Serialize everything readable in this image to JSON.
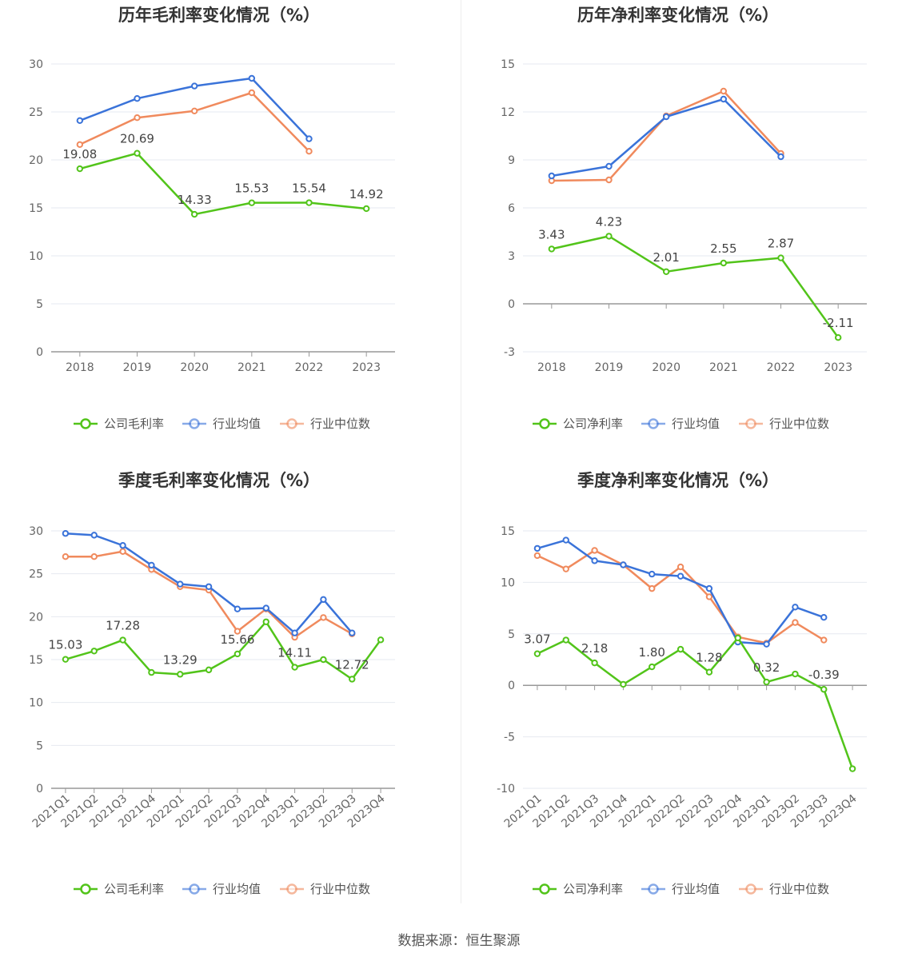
{
  "source_text": "数据来源：恒生聚源",
  "colors": {
    "company": "#52c41a",
    "avg": "#3a73d9",
    "median": "#f08a5d"
  },
  "chart_data": [
    {
      "type": "line",
      "title": "历年毛利率变化情况（%）",
      "categories": [
        "2018",
        "2019",
        "2020",
        "2021",
        "2022",
        "2023"
      ],
      "yticks": [
        0,
        5,
        10,
        15,
        20,
        25,
        30
      ],
      "ylim": [
        0,
        30
      ],
      "grid": true,
      "legend_position": "bottom",
      "series": [
        {
          "name": "公司毛利率",
          "values": [
            19.08,
            20.69,
            14.33,
            15.53,
            15.54,
            14.92
          ],
          "labels": [
            "19.08",
            "20.69",
            "14.33",
            "15.53",
            "15.54",
            "14.92"
          ]
        },
        {
          "name": "行业均值",
          "values": [
            24.1,
            26.4,
            27.7,
            28.5,
            22.2,
            null
          ]
        },
        {
          "name": "行业中位数",
          "values": [
            21.6,
            24.4,
            25.1,
            27.0,
            20.9,
            null
          ]
        }
      ]
    },
    {
      "type": "line",
      "title": "历年净利率变化情况（%）",
      "categories": [
        "2018",
        "2019",
        "2020",
        "2021",
        "2022",
        "2023"
      ],
      "yticks": [
        -3,
        0,
        3,
        6,
        9,
        12,
        15
      ],
      "ylim": [
        -3,
        15
      ],
      "grid": true,
      "legend_position": "bottom",
      "series": [
        {
          "name": "公司净利率",
          "values": [
            3.43,
            4.23,
            2.01,
            2.55,
            2.87,
            -2.11
          ],
          "labels": [
            "3.43",
            "4.23",
            "2.01",
            "2.55",
            "2.87",
            "-2.11"
          ]
        },
        {
          "name": "行业均值",
          "values": [
            8.0,
            8.6,
            11.7,
            12.8,
            9.2,
            null
          ]
        },
        {
          "name": "行业中位数",
          "values": [
            7.7,
            7.75,
            11.75,
            13.3,
            9.4,
            null
          ]
        }
      ]
    },
    {
      "type": "line",
      "title": "季度毛利率变化情况（%）",
      "categories": [
        "2021Q1",
        "2021Q2",
        "2021Q3",
        "2021Q4",
        "2022Q1",
        "2022Q2",
        "2022Q3",
        "2022Q4",
        "2023Q1",
        "2023Q2",
        "2023Q3",
        "2023Q4"
      ],
      "yticks": [
        0,
        5,
        10,
        15,
        20,
        25,
        30
      ],
      "ylim": [
        0,
        30
      ],
      "grid": true,
      "legend_position": "bottom",
      "series": [
        {
          "name": "公司毛利率",
          "values": [
            15.03,
            16.0,
            17.28,
            13.5,
            13.29,
            13.8,
            15.66,
            19.4,
            14.11,
            15.0,
            12.72,
            17.3
          ],
          "labels": [
            "15.03",
            "",
            "17.28",
            "",
            "13.29",
            "",
            "15.66",
            "",
            "14.11",
            "",
            "12.72",
            ""
          ]
        },
        {
          "name": "行业均值",
          "values": [
            29.7,
            29.5,
            28.3,
            26.0,
            23.8,
            23.5,
            20.9,
            21.0,
            18.1,
            22.0,
            18.1,
            null
          ]
        },
        {
          "name": "行业中位数",
          "values": [
            27.0,
            27.0,
            27.6,
            25.5,
            23.5,
            23.1,
            18.3,
            20.9,
            17.6,
            19.9,
            18.0,
            null
          ]
        }
      ]
    },
    {
      "type": "line",
      "title": "季度净利率变化情况（%）",
      "categories": [
        "2021Q1",
        "2021Q2",
        "2021Q3",
        "2021Q4",
        "2022Q1",
        "2022Q2",
        "2022Q3",
        "2022Q4",
        "2023Q1",
        "2023Q2",
        "2023Q3",
        "2023Q4"
      ],
      "yticks": [
        -10,
        -5,
        0,
        5,
        10,
        15
      ],
      "ylim": [
        -10,
        15
      ],
      "grid": true,
      "legend_position": "bottom",
      "series": [
        {
          "name": "公司净利率",
          "values": [
            3.07,
            4.4,
            2.18,
            0.1,
            1.8,
            3.5,
            1.28,
            4.6,
            0.32,
            1.1,
            -0.39,
            -8.1
          ],
          "labels": [
            "3.07",
            "",
            "2.18",
            "",
            "1.80",
            "",
            "1.28",
            "",
            "0.32",
            "",
            "-0.39",
            ""
          ]
        },
        {
          "name": "行业均值",
          "values": [
            13.3,
            14.1,
            12.1,
            11.7,
            10.8,
            10.6,
            9.4,
            4.2,
            4.0,
            7.6,
            6.6,
            null
          ]
        },
        {
          "name": "行业中位数",
          "values": [
            12.6,
            11.3,
            13.1,
            11.7,
            9.4,
            11.5,
            8.6,
            4.7,
            4.1,
            6.1,
            4.4,
            null
          ]
        }
      ]
    }
  ]
}
